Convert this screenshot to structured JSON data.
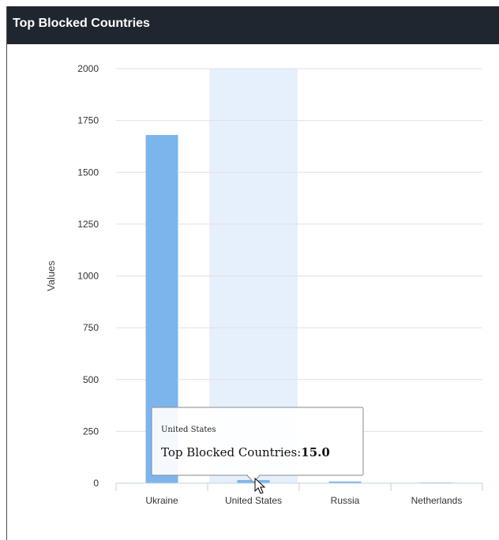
{
  "panel": {
    "title": "Top Blocked Countries"
  },
  "chart_data": {
    "type": "bar",
    "title": "",
    "xlabel": "",
    "ylabel": "Values",
    "ylim": [
      0,
      2000
    ],
    "yticks": [
      0,
      250,
      500,
      750,
      1000,
      1250,
      1500,
      1750,
      2000
    ],
    "grid": true,
    "categories": [
      "Ukraine",
      "United States",
      "Russia",
      "Netherlands"
    ],
    "series": [
      {
        "values": [
          1680,
          15,
          8,
          3
        ],
        "color": "#7cb5ec"
      }
    ],
    "highlight_index": 1
  },
  "tooltip": {
    "category": "United States",
    "series_label": "Top Blocked Countries:",
    "value": "15.0"
  },
  "colors": {
    "header_bg": "#1f2630",
    "bar": "#7cb5ec",
    "hover_band": "#e6f0fc",
    "grid": "#e0e0e0"
  }
}
